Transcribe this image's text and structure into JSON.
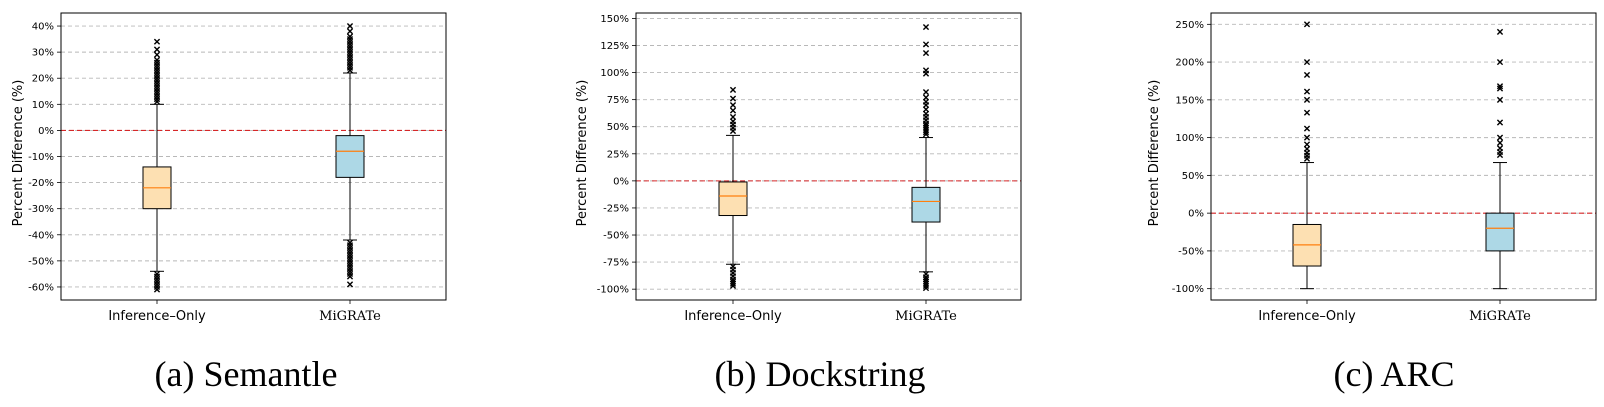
{
  "chart_data": [
    {
      "type": "box",
      "caption": "(a) Semantle",
      "ylabel": "Percent Difference (%)",
      "ylim": [
        -65,
        45
      ],
      "yticks": [
        -60,
        -50,
        -40,
        -30,
        -20,
        -10,
        0,
        10,
        20,
        30,
        40
      ],
      "ytick_labels": [
        "-60%",
        "-50%",
        "-40%",
        "-30%",
        "-20%",
        "-10%",
        "0%",
        "10%",
        "20%",
        "30%",
        "40%"
      ],
      "grid": true,
      "reference_line": 0,
      "reference_color": "#d62728",
      "median_color": "#ff7f0e",
      "categories": [
        "Inference–Only",
        "MiGRATe"
      ],
      "series": [
        {
          "color": "#fde0b2",
          "box": {
            "whisker_low": -54,
            "q1": -30,
            "median": -22,
            "q3": -14,
            "whisker_high": 10
          },
          "outliers": [
            -55,
            -56,
            -57,
            -58,
            -59,
            -60,
            -61,
            11,
            12,
            13,
            14,
            15,
            16,
            17,
            18,
            19,
            20,
            21,
            22,
            23,
            24,
            25,
            26,
            27,
            29,
            31,
            34
          ]
        },
        {
          "color": "#add8e6",
          "box": {
            "whisker_low": -42,
            "q1": -18,
            "median": -8,
            "q3": -2,
            "whisker_high": 22
          },
          "outliers": [
            -43,
            -44,
            -45,
            -46,
            -47,
            -48,
            -49,
            -50,
            -51,
            -52,
            -53,
            -54,
            -55,
            -56,
            -59,
            23,
            24,
            25,
            26,
            27,
            28,
            29,
            30,
            31,
            32,
            33,
            34,
            35,
            36,
            38,
            40
          ]
        }
      ]
    },
    {
      "type": "box",
      "caption": "(b) Dockstring",
      "ylabel": "Percent Difference (%)",
      "ylim": [
        -110,
        155
      ],
      "yticks": [
        -100,
        -75,
        -50,
        -25,
        0,
        25,
        50,
        75,
        100,
        125,
        150
      ],
      "ytick_labels": [
        "-100%",
        "-75%",
        "-50%",
        "-25%",
        "0%",
        "25%",
        "50%",
        "75%",
        "100%",
        "125%",
        "150%"
      ],
      "grid": true,
      "reference_line": 0,
      "reference_color": "#d62728",
      "median_color": "#ff7f0e",
      "categories": [
        "Inference–Only",
        "MiGRATe"
      ],
      "series": [
        {
          "color": "#fde0b2",
          "box": {
            "whisker_low": -77,
            "q1": -32,
            "median": -14,
            "q3": -1,
            "whisker_high": 42
          },
          "outliers": [
            -79,
            -82,
            -85,
            -88,
            -91,
            -93,
            -95,
            -97,
            46,
            49,
            52,
            55,
            59,
            65,
            70,
            76,
            84
          ]
        },
        {
          "color": "#add8e6",
          "box": {
            "whisker_low": -84,
            "q1": -38,
            "median": -19,
            "q3": -6,
            "whisker_high": 40
          },
          "outliers": [
            -86,
            -89,
            -91,
            -93,
            -95,
            -97,
            -99,
            43,
            45,
            47,
            49,
            51,
            53,
            56,
            59,
            62,
            66,
            70,
            73,
            77,
            82,
            99,
            102,
            118,
            126,
            142
          ]
        }
      ]
    },
    {
      "type": "box",
      "caption": "(c) ARC",
      "ylabel": "Percent Difference (%)",
      "ylim": [
        -115,
        265
      ],
      "yticks": [
        -100,
        -50,
        0,
        50,
        100,
        150,
        200,
        250
      ],
      "ytick_labels": [
        "-100%",
        "-50%",
        "0%",
        "50%",
        "100%",
        "150%",
        "200%",
        "250%"
      ],
      "grid": true,
      "reference_line": 0,
      "reference_color": "#d62728",
      "median_color": "#ff7f0e",
      "categories": [
        "Inference–Only",
        "MiGRATe"
      ],
      "series": [
        {
          "color": "#fde0b2",
          "box": {
            "whisker_low": -100,
            "q1": -70,
            "median": -42,
            "q3": -15,
            "whisker_high": 67
          },
          "outliers": [
            72,
            76,
            80,
            85,
            91,
            100,
            112,
            133,
            150,
            161,
            183,
            200,
            250
          ]
        },
        {
          "color": "#add8e6",
          "box": {
            "whisker_low": -100,
            "q1": -50,
            "median": -20,
            "q3": 0,
            "whisker_high": 67
          },
          "outliers": [
            77,
            81,
            86,
            93,
            100,
            120,
            150,
            165,
            168,
            200,
            240
          ]
        }
      ]
    }
  ]
}
